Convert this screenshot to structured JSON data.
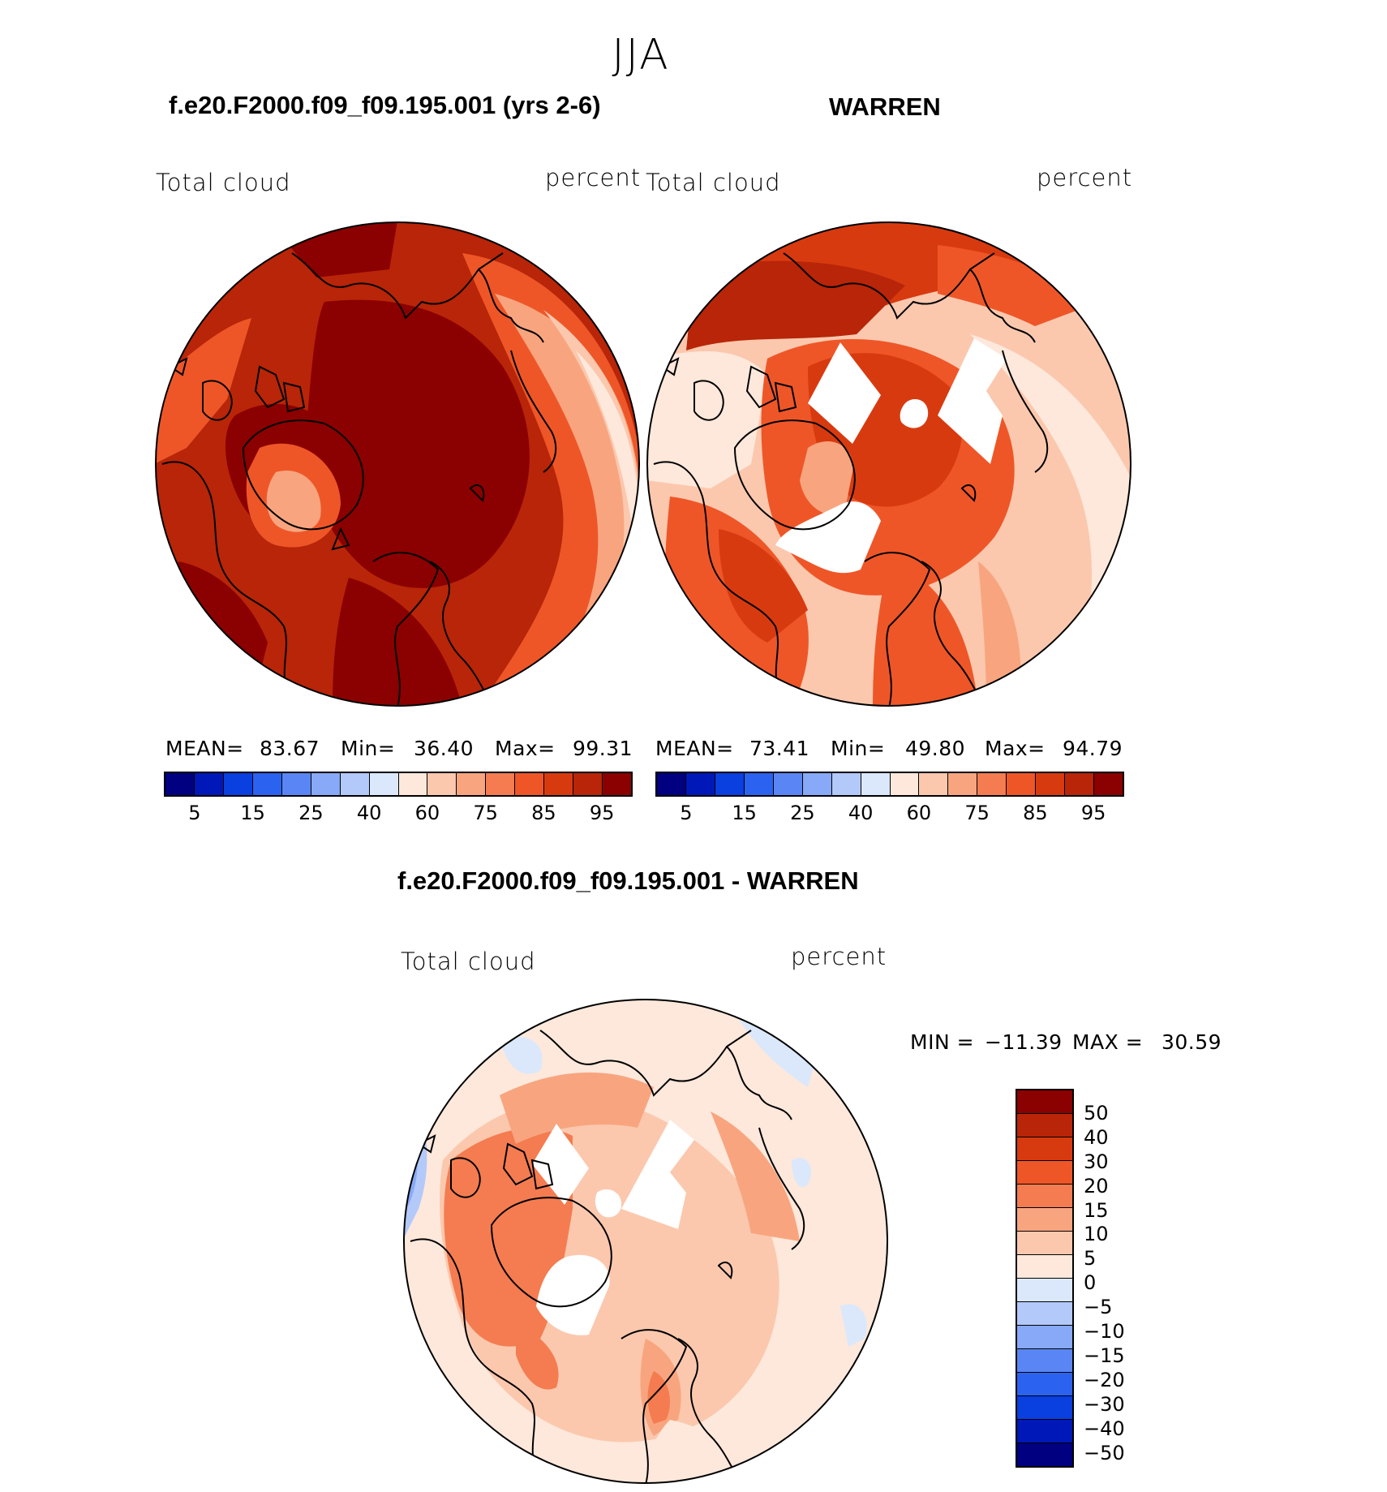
{
  "header": {
    "season": "JJA",
    "left_case": "f.e20.F2000.f09_f09.195.001 (yrs 2-6)",
    "right_case": "WARREN",
    "diff_case": "f.e20.F2000.f09_f09.195.001 - WARREN"
  },
  "chart_data": [
    {
      "type": "heatmap",
      "projection": "north polar stereographic",
      "title": "f.e20.F2000.f09_f09.195.001 (yrs 2-6)",
      "variable": "Total cloud",
      "units": "percent",
      "stats": {
        "mean_label": "MEAN=",
        "mean": "83.67",
        "min_label": "Min=",
        "min": "36.40",
        "max_label": "Max=",
        "max": "99.31"
      },
      "colorbar": {
        "levels": [
          5,
          10,
          15,
          20,
          25,
          30,
          40,
          50,
          60,
          70,
          75,
          80,
          85,
          90,
          95
        ],
        "tick_labels": [
          "5",
          "15",
          "25",
          "40",
          "60",
          "75",
          "85",
          "95"
        ],
        "colors": [
          "#000080",
          "#0018b8",
          "#0a3fe0",
          "#2b62f0",
          "#5a86f5",
          "#88a9f7",
          "#b3c9fa",
          "#dbe8fb",
          "#fde8db",
          "#fbc8ae",
          "#f8a57f",
          "#f47c50",
          "#ee5628",
          "#d83a10",
          "#b82508",
          "#8b0000"
        ]
      }
    },
    {
      "type": "heatmap",
      "projection": "north polar stereographic",
      "title": "WARREN",
      "variable": "Total cloud",
      "units": "percent",
      "stats": {
        "mean_label": "MEAN=",
        "mean": "73.41",
        "min_label": "Min=",
        "min": "49.80",
        "max_label": "Max=",
        "max": "94.79"
      },
      "colorbar": {
        "levels": [
          5,
          10,
          15,
          20,
          25,
          30,
          40,
          50,
          60,
          70,
          75,
          80,
          85,
          90,
          95
        ],
        "tick_labels": [
          "5",
          "15",
          "25",
          "40",
          "60",
          "75",
          "85",
          "95"
        ],
        "colors": [
          "#000080",
          "#0018b8",
          "#0a3fe0",
          "#2b62f0",
          "#5a86f5",
          "#88a9f7",
          "#b3c9fa",
          "#dbe8fb",
          "#fde8db",
          "#fbc8ae",
          "#f8a57f",
          "#f47c50",
          "#ee5628",
          "#d83a10",
          "#b82508",
          "#8b0000"
        ]
      }
    },
    {
      "type": "heatmap",
      "projection": "north polar stereographic",
      "title": "f.e20.F2000.f09_f09.195.001 - WARREN",
      "variable": "Total cloud",
      "units": "percent",
      "stats": {
        "min_label": "MIN =",
        "min": "−11.39",
        "max_label": "MAX =",
        "max": "30.59"
      },
      "colorbar": {
        "levels": [
          50,
          40,
          30,
          20,
          15,
          10,
          5,
          0,
          -5,
          -10,
          -15,
          -20,
          -30,
          -40,
          -50
        ],
        "tick_labels": [
          "50",
          "40",
          "30",
          "20",
          "15",
          "10",
          "5",
          "0",
          "−5",
          "−10",
          "−15",
          "−20",
          "−30",
          "−40",
          "−50"
        ],
        "colors": [
          "#8b0000",
          "#b82508",
          "#d83a10",
          "#ee5628",
          "#f47c50",
          "#f8a57f",
          "#fbc8ae",
          "#fde8db",
          "#dbe8fb",
          "#b3c9fa",
          "#88a9f7",
          "#5a86f5",
          "#2b62f0",
          "#0a3fe0",
          "#0018b8",
          "#000080"
        ]
      }
    }
  ]
}
